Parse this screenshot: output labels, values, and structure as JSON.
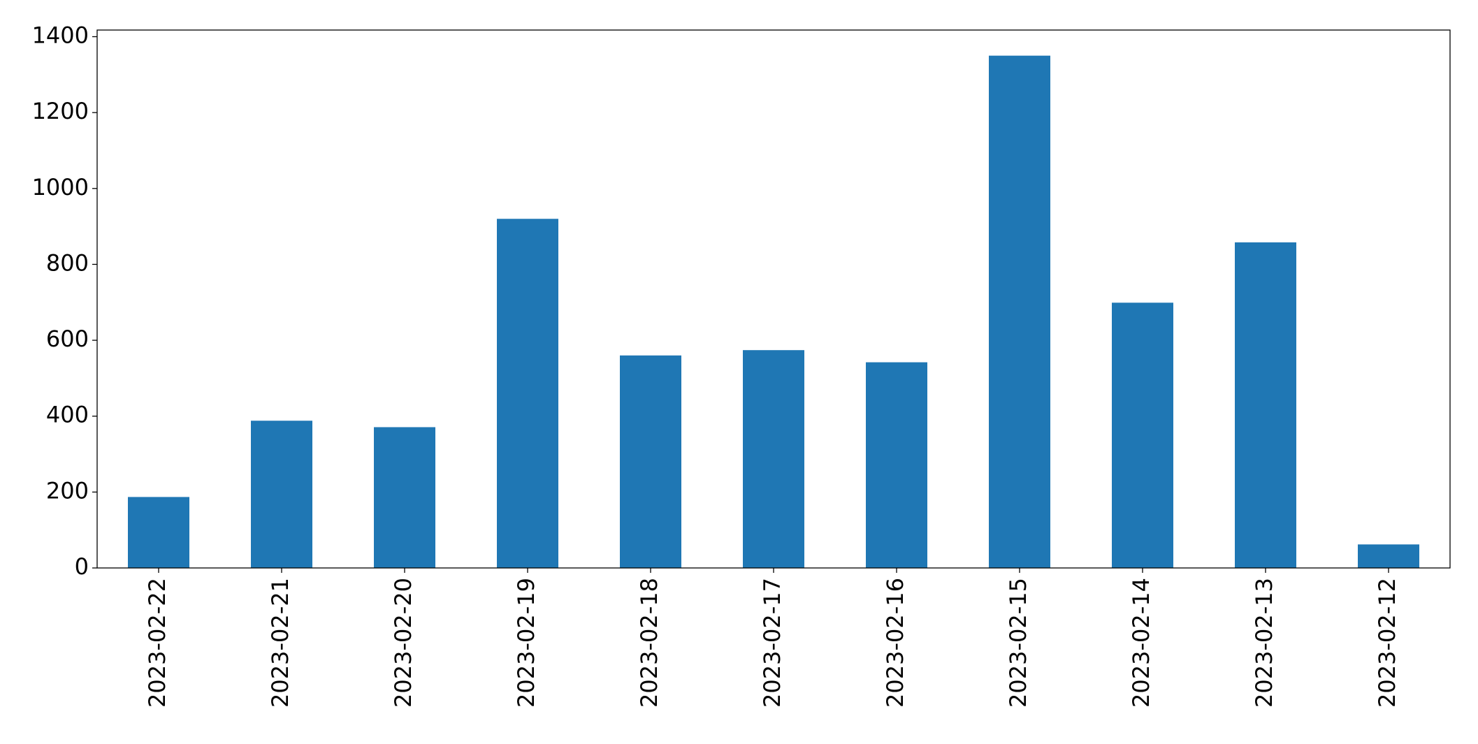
{
  "chart_data": {
    "type": "bar",
    "categories": [
      "2023-02-22",
      "2023-02-21",
      "2023-02-20",
      "2023-02-19",
      "2023-02-18",
      "2023-02-17",
      "2023-02-16",
      "2023-02-15",
      "2023-02-14",
      "2023-02-13",
      "2023-02-12"
    ],
    "values": [
      187,
      388,
      371,
      920,
      560,
      574,
      542,
      1350,
      699,
      858,
      62
    ],
    "color": "#1f77b4",
    "ylim": [
      0,
      1417.5
    ],
    "yticks": [
      0,
      200,
      400,
      600,
      800,
      1000,
      1200,
      1400
    ],
    "grid": false
  }
}
